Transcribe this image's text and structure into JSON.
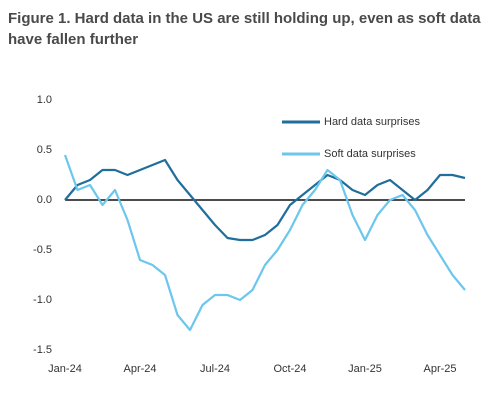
{
  "chart_data": {
    "type": "line",
    "title": "Figure 1. Hard data in the US are still holding up, even as soft data have fallen further",
    "categories": [
      "Jan-24",
      null,
      null,
      null,
      null,
      null,
      "Apr-24",
      null,
      null,
      null,
      null,
      null,
      "Jul-24",
      null,
      null,
      null,
      null,
      null,
      "Oct-24",
      null,
      null,
      null,
      null,
      null,
      "Jan-25",
      null,
      null,
      null,
      null,
      null,
      "Apr-25",
      null,
      null
    ],
    "series": [
      {
        "name": "Hard data surprises",
        "color": "#1f6e9c",
        "values": [
          0.0,
          0.15,
          0.2,
          0.3,
          0.3,
          0.25,
          0.3,
          0.35,
          0.4,
          0.2,
          0.05,
          -0.1,
          -0.25,
          -0.38,
          -0.4,
          -0.4,
          -0.35,
          -0.25,
          -0.05,
          0.05,
          0.15,
          0.25,
          0.2,
          0.1,
          0.05,
          0.15,
          0.2,
          0.1,
          0.0,
          0.1,
          0.25,
          0.25,
          0.22
        ]
      },
      {
        "name": "Soft data surprises",
        "color": "#6cc6ee",
        "values": [
          0.45,
          0.1,
          0.15,
          -0.05,
          0.1,
          -0.2,
          -0.6,
          -0.65,
          -0.75,
          -1.15,
          -1.3,
          -1.05,
          -0.95,
          -0.95,
          -1.0,
          -0.9,
          -0.65,
          -0.5,
          -0.3,
          -0.05,
          0.1,
          0.3,
          0.2,
          -0.15,
          -0.4,
          -0.15,
          0.0,
          0.05,
          -0.1,
          -0.35,
          -0.55,
          -0.75,
          -0.9
        ]
      }
    ],
    "ylim": [
      -1.5,
      1.0
    ],
    "yticks": [
      {
        "value": -1.5,
        "label": "-1.5"
      },
      {
        "value": -1.0,
        "label": "-1.0"
      },
      {
        "value": -0.5,
        "label": "-0.5"
      },
      {
        "value": 0.0,
        "label": "0.0"
      },
      {
        "value": 0.5,
        "label": "0.5"
      },
      {
        "value": 1.0,
        "label": "1.0"
      }
    ],
    "grid": false,
    "legend": "top-right"
  }
}
